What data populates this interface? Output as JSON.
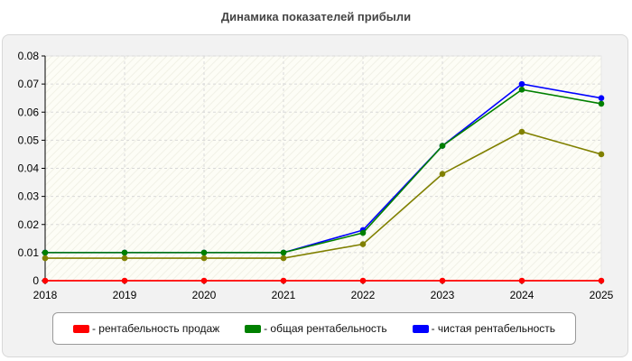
{
  "chart_data": {
    "type": "line",
    "title": "Динамика показателей прибыли",
    "xlabel": "",
    "ylabel": "",
    "x": [
      "2018",
      "2019",
      "2020",
      "2021",
      "2022",
      "2023",
      "2024",
      "2025"
    ],
    "ylim": [
      0,
      0.08
    ],
    "yticks": [
      "0",
      "0.01",
      "0.02",
      "0.03",
      "0.04",
      "0.05",
      "0.06",
      "0.07",
      "0.08"
    ],
    "grid": true,
    "legend_position": "bottom",
    "series": [
      {
        "name": "- рентабельность продаж",
        "color": "#ff0000",
        "values": [
          0,
          0,
          0,
          0,
          0,
          0,
          0,
          0
        ]
      },
      {
        "name": "- общая рентабельность",
        "color": "#008000",
        "marker_color": "#808000",
        "values": [
          0.008,
          0.008,
          0.008,
          0.008,
          0.013,
          0.038,
          0.053,
          0.045
        ]
      },
      {
        "name": "- общая рентабельность",
        "color": "#008000",
        "values": [
          0.01,
          0.01,
          0.01,
          0.01,
          0.017,
          0.048,
          0.068,
          0.063
        ]
      },
      {
        "name": "- чистая рентабельность",
        "color": "#0000ff",
        "values": [
          0.01,
          0.01,
          0.01,
          0.01,
          0.018,
          0.048,
          0.07,
          0.065
        ]
      }
    ],
    "legend": [
      {
        "label": "- рентабельность продаж",
        "color": "#ff0000"
      },
      {
        "label": "- общая рентабельность",
        "color": "#008000"
      },
      {
        "label": "- чистая рентабельность",
        "color": "#0000ff"
      }
    ]
  }
}
